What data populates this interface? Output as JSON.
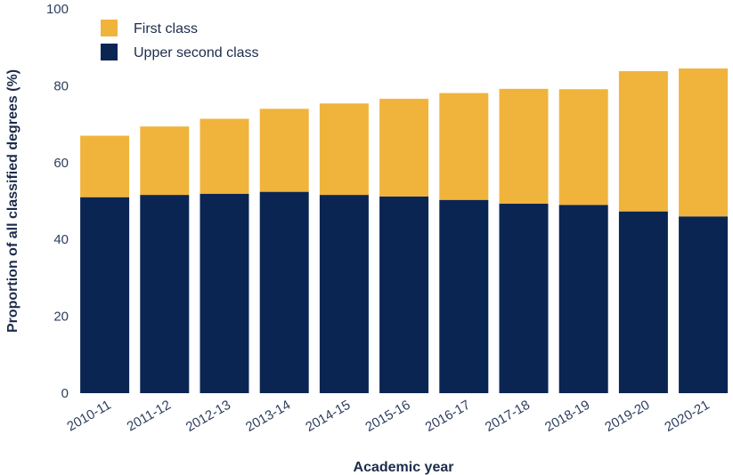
{
  "chart_data": {
    "type": "bar",
    "stacked": true,
    "xlabel": "Academic year",
    "ylabel": "Proportion of all classified degrees (%)",
    "ylim": [
      0,
      100
    ],
    "yticks": [
      0,
      20,
      40,
      60,
      80,
      100
    ],
    "grid": false,
    "legend_position": "top-left",
    "categories": [
      "2010-11",
      "2011-12",
      "2012-13",
      "2013-14",
      "2014-15",
      "2015-16",
      "2016-17",
      "2017-18",
      "2018-19",
      "2019-20",
      "2020-21"
    ],
    "series": [
      {
        "name": "Upper second class",
        "color": "#0b2553",
        "values": [
          51.0,
          51.6,
          51.9,
          52.4,
          51.6,
          51.2,
          50.3,
          49.3,
          49.0,
          47.3,
          46.0
        ]
      },
      {
        "name": "First class",
        "color": "#f0b43c",
        "values": [
          16.0,
          17.8,
          19.5,
          21.6,
          23.8,
          25.4,
          27.8,
          29.9,
          30.1,
          36.5,
          38.5
        ]
      }
    ],
    "legend_order": [
      "First class",
      "Upper second class"
    ]
  }
}
